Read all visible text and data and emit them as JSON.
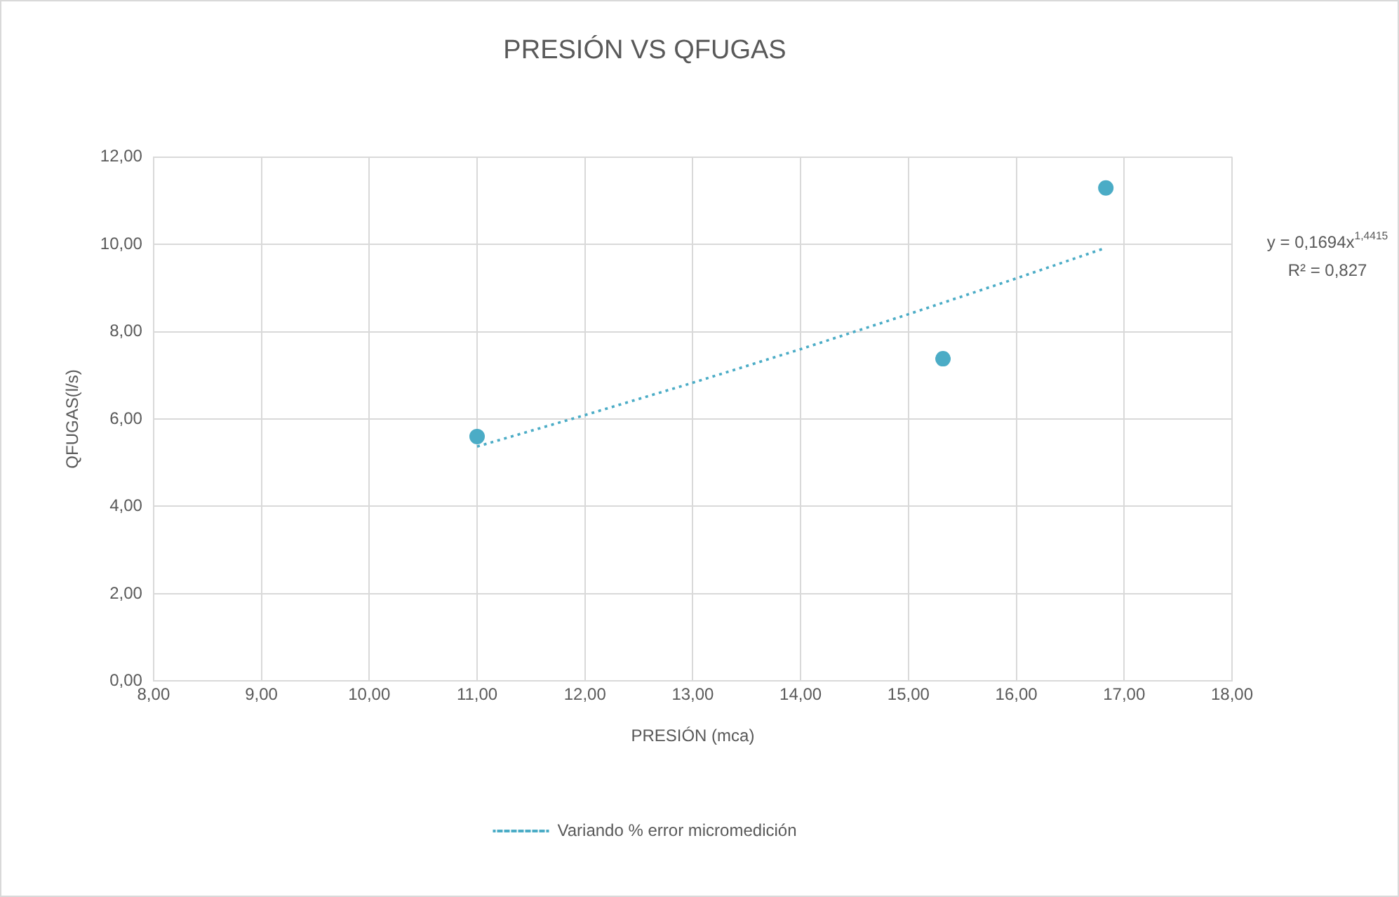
{
  "chart_data": {
    "type": "scatter",
    "title": "PRESIÓN VS QFUGAS",
    "xlabel": "PRESIÓN (mca)",
    "ylabel": "QFUGAS(l/s)",
    "series": [
      {
        "color": "#4bacc6",
        "marker": "circle",
        "x": [
          11.0,
          15.32,
          16.83
        ],
        "values": [
          5.6,
          7.38,
          11.29
        ]
      },
      {
        "type": "line",
        "name": "Variando % error micromedición",
        "color": "#4bacc6",
        "marker": "none",
        "line_style": "dotted",
        "x": [
          11,
          12,
          13,
          14,
          15,
          16,
          16.83
        ],
        "values": [
          5.37,
          6.09,
          6.83,
          7.6,
          8.4,
          9.22,
          9.92
        ]
      }
    ],
    "xlim": [
      8,
      18
    ],
    "xticks": [
      {
        "value": 8,
        "label": "8,00"
      },
      {
        "value": 9,
        "label": "9,00"
      },
      {
        "value": 10,
        "label": "10,00"
      },
      {
        "value": 11,
        "label": "11,00"
      },
      {
        "value": 12,
        "label": "12,00"
      },
      {
        "value": 13,
        "label": "13,00"
      },
      {
        "value": 14,
        "label": "14,00"
      },
      {
        "value": 15,
        "label": "15,00"
      },
      {
        "value": 16,
        "label": "16,00"
      },
      {
        "value": 17,
        "label": "17,00"
      },
      {
        "value": 18,
        "label": "18,00"
      }
    ],
    "ylim": [
      0,
      12
    ],
    "yticks": [
      {
        "value": 0,
        "label": "0,00"
      },
      {
        "value": 2,
        "label": "2,00"
      },
      {
        "value": 4,
        "label": "4,00"
      },
      {
        "value": 6,
        "label": "6,00"
      },
      {
        "value": 8,
        "label": "8,00"
      },
      {
        "value": 10,
        "label": "10,00"
      },
      {
        "value": 12,
        "label": "12,00"
      }
    ],
    "grid": true,
    "legend": "bottom",
    "annotations": [
      "y = 0,1694x$^{1,4415}$",
      "R² = 0,827"
    ]
  }
}
